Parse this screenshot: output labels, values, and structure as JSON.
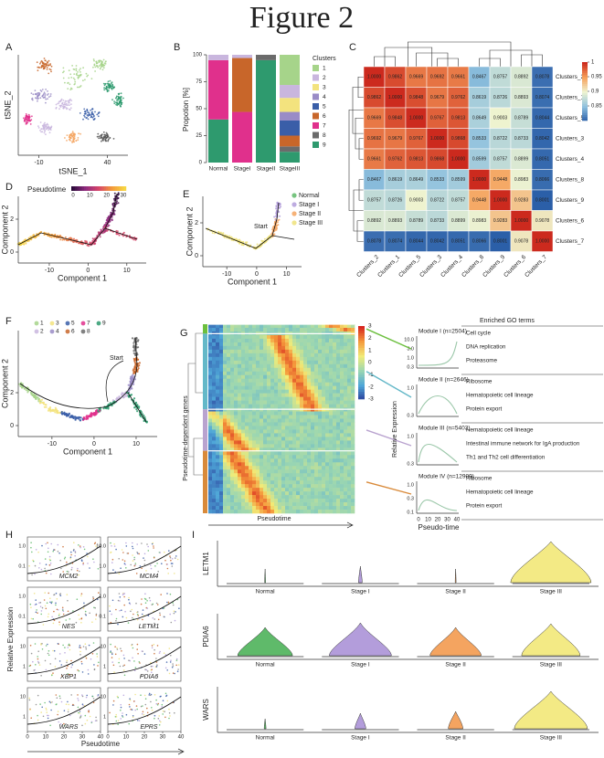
{
  "title": "Figure 2",
  "chart_data": [
    {
      "type": "bar",
      "stacked": true,
      "ylabel": "Propotion [%]",
      "legend_title": "Clusters",
      "categories": [
        "Normal",
        "StageI",
        "StageII",
        "StageIII"
      ],
      "ylim": [
        0,
        100
      ],
      "yticks": [
        0,
        25,
        50,
        75,
        100
      ],
      "series": [
        {
          "name": "1",
          "color": "#a6d48a",
          "values": [
            0,
            0,
            0,
            28
          ]
        },
        {
          "name": "2",
          "color": "#c9b6de",
          "values": [
            5,
            3,
            0,
            12
          ]
        },
        {
          "name": "3",
          "color": "#f3e37e",
          "values": [
            0,
            0,
            0,
            13
          ]
        },
        {
          "name": "4",
          "color": "#9a8cc6",
          "values": [
            0,
            0,
            0,
            8
          ]
        },
        {
          "name": "5",
          "color": "#3a5ea8",
          "values": [
            0,
            0,
            0,
            14
          ]
        },
        {
          "name": "6",
          "color": "#c8662a",
          "values": [
            0,
            50,
            0,
            10
          ]
        },
        {
          "name": "7",
          "color": "#e0308c",
          "values": [
            55,
            47,
            0,
            0
          ]
        },
        {
          "name": "8",
          "color": "#6b6b6b",
          "values": [
            0,
            0,
            5,
            5
          ]
        },
        {
          "name": "9",
          "color": "#2e9a6e",
          "values": [
            40,
            0,
            95,
            10
          ]
        }
      ]
    },
    {
      "type": "heatmap",
      "labels": [
        "Clusters_2",
        "Clusters_1",
        "Clusters_5",
        "Clusters_3",
        "Clusters_4",
        "Clusters_8",
        "Clusters_9",
        "Clusters_6",
        "Clusters_7"
      ],
      "values": [
        [
          1,
          0.9862,
          0.9669,
          0.9692,
          0.9661,
          0.8467,
          0.8757,
          0.8892,
          0.8078
        ],
        [
          0.9862,
          1,
          0.9848,
          0.9679,
          0.9762,
          0.8619,
          0.8726,
          0.8893,
          0.8074
        ],
        [
          0.9669,
          0.9848,
          1,
          0.9767,
          0.9813,
          0.8649,
          0.9003,
          0.8789,
          0.8044
        ],
        [
          0.9692,
          0.9679,
          0.9767,
          1,
          0.9868,
          0.8533,
          0.8722,
          0.8733,
          0.8042
        ],
        [
          0.9661,
          0.9762,
          0.9813,
          0.9868,
          1,
          0.8599,
          0.8757,
          0.8899,
          0.8051
        ],
        [
          0.8467,
          0.8619,
          0.8649,
          0.8533,
          0.8599,
          1,
          0.9448,
          0.8983,
          0.8066
        ],
        [
          0.8757,
          0.8726,
          0.9003,
          0.8722,
          0.8757,
          0.9448,
          1,
          0.9283,
          0.8001
        ],
        [
          0.8892,
          0.8893,
          0.8789,
          0.8733,
          0.8899,
          0.8983,
          0.9283,
          1,
          0.9078
        ],
        [
          0.8078,
          0.8074,
          0.8044,
          0.8042,
          0.8051,
          0.8066,
          0.8001,
          0.9078,
          1
        ]
      ],
      "value_labels": [
        [
          "1.0000",
          "0.9862",
          "0.9669",
          "0.9692",
          "0.9661",
          "0.8467",
          "0.8757",
          "0.8892",
          "0.8078"
        ],
        [
          "0.9862",
          "1.0000",
          "0.9848",
          "0.9679",
          "0.9762",
          "0.8619",
          "0.8726",
          "0.8893",
          "0.8074"
        ],
        [
          "0.9669",
          "0.9848",
          "1.0000",
          "0.9767",
          "0.9813",
          "0.8649",
          "0.9003",
          "0.8789",
          "0.8044"
        ],
        [
          "0.9692",
          "0.9679",
          "0.9767",
          "1.0000",
          "0.9868",
          "0.8533",
          "0.8722",
          "0.8733",
          "0.8042"
        ],
        [
          "0.9661",
          "0.9762",
          "0.9813",
          "0.9868",
          "1.0000",
          "0.8599",
          "0.8757",
          "0.8899",
          "0.8051"
        ],
        [
          "0.8467",
          "0.8619",
          "0.8649",
          "0.8533",
          "0.8599",
          "1.0000",
          "0.9448",
          "0.8983",
          "0.8066"
        ],
        [
          "0.8757",
          "0.8726",
          "0.9003",
          "0.8722",
          "0.8757",
          "0.9448",
          "1.0000",
          "0.9283",
          "0.8001"
        ],
        [
          "0.8892",
          "0.8893",
          "0.8789",
          "0.8733",
          "0.8899",
          "0.8983",
          "0.9283",
          "1.0000",
          "0.9078"
        ],
        [
          "0.8078",
          "0.8074",
          "0.8044",
          "0.8042",
          "0.8051",
          "0.8066",
          "0.8001",
          "0.9078",
          "1.0000"
        ]
      ],
      "clim": [
        0.8,
        1
      ],
      "colormap": [
        "#2b5fa8",
        "#8fc1df",
        "#eef3d0",
        "#f6a05a",
        "#cc2a1e"
      ],
      "colorbar_ticks": [
        1,
        0.95,
        0.9,
        0.85
      ]
    }
  ],
  "panels": {
    "A": {
      "letter": "A",
      "xlabel": "tSNE_1",
      "ylabel": "tSNE_2",
      "xlim": [
        -25,
        55
      ],
      "xticks": [
        -10,
        40
      ]
    },
    "B": {
      "letter": "B"
    },
    "C": {
      "letter": "C"
    },
    "D": {
      "letter": "D",
      "legend_title": "Pseudotime",
      "colorbar_ticks": [
        0,
        10,
        20,
        30
      ],
      "xlabel": "Component 1",
      "ylabel": "Component 2",
      "xlim": [
        -18,
        15
      ],
      "xticks": [
        -10,
        0,
        10
      ],
      "yticks": [
        0,
        2
      ]
    },
    "E": {
      "letter": "E",
      "legend": [
        {
          "name": "Normal",
          "color": "#5fba6a"
        },
        {
          "name": "Stage I",
          "color": "#b39ddb"
        },
        {
          "name": "Stage II",
          "color": "#f4a460"
        },
        {
          "name": "Stage III",
          "color": "#efe27a"
        }
      ],
      "start": "Start",
      "xlabel": "Component 1",
      "ylabel": "Component 2",
      "xlim": [
        -18,
        15
      ],
      "xticks": [
        -10,
        0,
        10
      ],
      "yticks": [
        0,
        2
      ]
    },
    "F": {
      "letter": "F",
      "legend": [
        {
          "name": "1",
          "color": "#a6d48a"
        },
        {
          "name": "3",
          "color": "#f3e37e"
        },
        {
          "name": "5",
          "color": "#3a5ea8"
        },
        {
          "name": "7",
          "color": "#e0308c"
        },
        {
          "name": "9",
          "color": "#2e9a6e"
        },
        {
          "name": "2",
          "color": "#c9b6de"
        },
        {
          "name": "4",
          "color": "#9a8cc6"
        },
        {
          "name": "6",
          "color": "#c8662a"
        },
        {
          "name": "8",
          "color": "#6b6b6b"
        }
      ],
      "start": "Start",
      "xlabel": "Component 1",
      "ylabel": "Component 2",
      "xlim": [
        -18,
        15
      ],
      "xticks": [
        -10,
        0,
        10
      ],
      "yticks": [
        0,
        2
      ]
    },
    "G": {
      "letter": "G",
      "xlabel": "Pseudotime",
      "ylabel": "Pseudotime-dependent genes",
      "colorbar_ticks": [
        3,
        2,
        1,
        0,
        -1,
        -2,
        -3
      ],
      "clim": [
        -3,
        3
      ],
      "colormap": [
        "#2a3f9a",
        "#4ea6d8",
        "#9ad6b2",
        "#f1ec78",
        "#f59a3c",
        "#d7261e"
      ],
      "go_header": "Enriched GO terms",
      "module_ylabel": "Relative Expression",
      "module_xlabel": "Pseudo-time",
      "module_xticks": [
        0,
        10,
        20,
        30,
        40
      ],
      "modules": [
        {
          "name": "Module I (n=2504)",
          "yticks": [
            "10.0",
            "3.0",
            "1.0",
            "0.3"
          ],
          "terms": [
            "Cell cycle",
            "DNA replication",
            "Proteasome"
          ],
          "color": "#6cbf3e"
        },
        {
          "name": "Module II (n=2646)",
          "yticks": [
            "1.0",
            "0.3"
          ],
          "terms": [
            "Ribosome",
            "Hematopoietic cell lineage",
            "Protein export"
          ],
          "color": "#64b8c8"
        },
        {
          "name": "Module III (n=5403)",
          "yticks": [
            "1.0",
            "0.3"
          ],
          "terms": [
            "Hematopoietic cell lineage",
            "Intestinal immune network for IgA production",
            "Th1 and Th2 cell differentiation"
          ],
          "color": "#b9a3cf"
        },
        {
          "name": "Module IV (n=12909)",
          "yticks": [
            "1.0",
            "0.3",
            "0.1"
          ],
          "terms": [
            "Ribosome",
            "Hematopoietic cell lineage",
            "Protein export"
          ],
          "color": "#d98a3a"
        }
      ]
    },
    "H": {
      "letter": "H",
      "ylabel": "Relative Expression",
      "xlabel": "Pseudotime",
      "xlim": [
        0,
        40
      ],
      "xticks": [
        0,
        10,
        20,
        30,
        40
      ],
      "genes": [
        {
          "name": "MCM2",
          "yticks": [
            "1.0",
            "0.1"
          ]
        },
        {
          "name": "MCM4",
          "yticks": [
            "10.0",
            "1.0"
          ]
        },
        {
          "name": "NES",
          "yticks": [
            "1.0",
            "0.1"
          ]
        },
        {
          "name": "LETM1",
          "yticks": [
            "1.0",
            "0.1"
          ]
        },
        {
          "name": "XBP1",
          "yticks": [
            "10",
            "1"
          ]
        },
        {
          "name": "PDIA6",
          "yticks": [
            "10",
            "1"
          ]
        },
        {
          "name": "WARS",
          "yticks": [
            "10",
            "1"
          ]
        },
        {
          "name": "EPRS",
          "yticks": [
            "10",
            "1"
          ]
        }
      ]
    },
    "I": {
      "letter": "I",
      "categories": [
        "Normal",
        "Stage I",
        "Stage II",
        "Stage III"
      ],
      "colors": [
        "#5fba6a",
        "#b39ddb",
        "#f4a460",
        "#f3ea85"
      ],
      "genes": [
        "LETM1",
        "PDIA6",
        "WARS"
      ]
    }
  }
}
